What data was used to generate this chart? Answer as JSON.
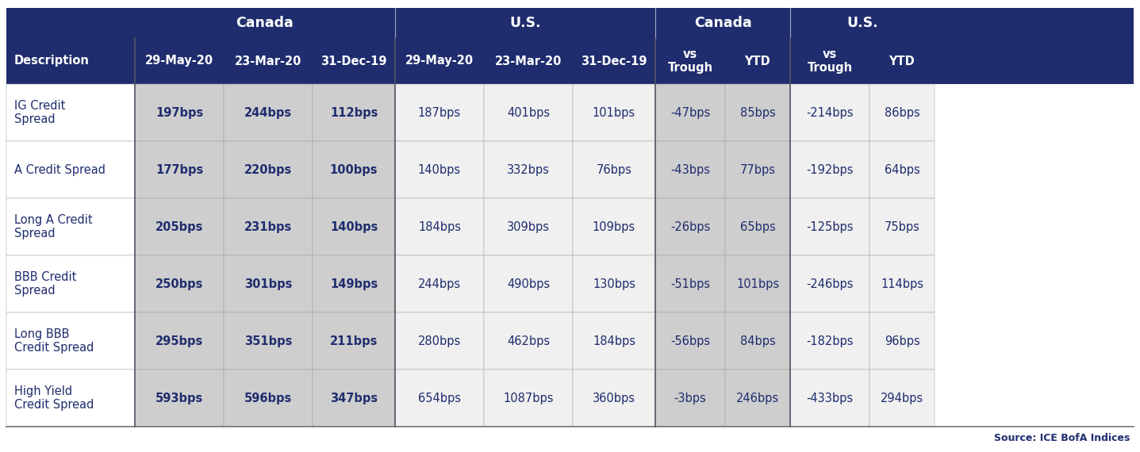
{
  "header_bg_color": "#1F2D6E",
  "header_text_color": "#FFFFFF",
  "data_text_color": "#1F2D6E",
  "canada_col_bg": "#CECECE",
  "us_col_bg": "#F0F0F0",
  "desc_col_bg": "#FFFFFF",
  "source_text": "Source: ICE BofA Indices",
  "col_headers": [
    "Description",
    "29-May-20",
    "23-Mar-20",
    "31-Dec-19",
    "29-May-20",
    "23-Mar-20",
    "31-Dec-19",
    "vs\nTrough",
    "YTD",
    "vs\nTrough",
    "YTD"
  ],
  "rows": [
    {
      "label": "IG Credit\nSpread",
      "canada_bold": [
        "197bps",
        "244bps",
        "112bps"
      ],
      "us": [
        "187bps",
        "401bps",
        "101bps"
      ],
      "canada_change": [
        "-47bps",
        "85bps"
      ],
      "us_change": [
        "-214bps",
        "86bps"
      ]
    },
    {
      "label": "A Credit Spread",
      "canada_bold": [
        "177bps",
        "220bps",
        "100bps"
      ],
      "us": [
        "140bps",
        "332bps",
        "76bps"
      ],
      "canada_change": [
        "-43bps",
        "77bps"
      ],
      "us_change": [
        "-192bps",
        "64bps"
      ]
    },
    {
      "label": "Long A Credit\nSpread",
      "canada_bold": [
        "205bps",
        "231bps",
        "140bps"
      ],
      "us": [
        "184bps",
        "309bps",
        "109bps"
      ],
      "canada_change": [
        "-26bps",
        "65bps"
      ],
      "us_change": [
        "-125bps",
        "75bps"
      ]
    },
    {
      "label": "BBB Credit\nSpread",
      "canada_bold": [
        "250bps",
        "301bps",
        "149bps"
      ],
      "us": [
        "244bps",
        "490bps",
        "130bps"
      ],
      "canada_change": [
        "-51bps",
        "101bps"
      ],
      "us_change": [
        "-246bps",
        "114bps"
      ]
    },
    {
      "label": "Long BBB\nCredit Spread",
      "canada_bold": [
        "295bps",
        "351bps",
        "211bps"
      ],
      "us": [
        "280bps",
        "462bps",
        "184bps"
      ],
      "canada_change": [
        "-56bps",
        "84bps"
      ],
      "us_change": [
        "-182bps",
        "96bps"
      ]
    },
    {
      "label": "High Yield\nCredit Spread",
      "canada_bold": [
        "593bps",
        "596bps",
        "347bps"
      ],
      "us": [
        "654bps",
        "1087bps",
        "360bps"
      ],
      "canada_change": [
        "-3bps",
        "246bps"
      ],
      "us_change": [
        "-433bps",
        "294bps"
      ]
    }
  ]
}
